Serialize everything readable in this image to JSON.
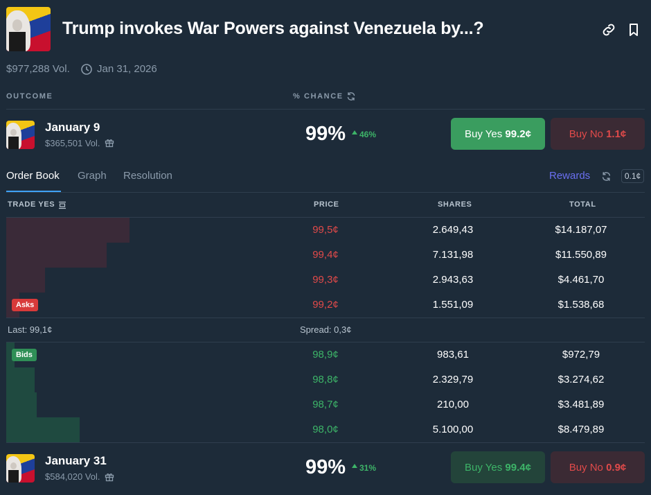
{
  "market": {
    "title": "Trump invokes War Powers against Venezuela by...?",
    "volume": "$977,288 Vol.",
    "end_date": "Jan 31, 2026"
  },
  "header_cols": {
    "outcome": "OUTCOME",
    "chance": "% CHANCE"
  },
  "outcomes": [
    {
      "name": "January 9",
      "volume": "$365,501 Vol.",
      "chance": "99%",
      "delta": "46%",
      "buy_yes_label": "Buy Yes",
      "buy_yes_price": "99.2¢",
      "buy_no_label": "Buy No",
      "buy_no_price": "1.1¢"
    },
    {
      "name": "January 31",
      "volume": "$584,020 Vol.",
      "chance": "99%",
      "delta": "31%",
      "buy_yes_label": "Buy Yes",
      "buy_yes_price": "99.4¢",
      "buy_no_label": "Buy No",
      "buy_no_price": "0.9¢"
    }
  ],
  "tabs": {
    "order_book": "Order Book",
    "graph": "Graph",
    "resolution": "Resolution"
  },
  "rewards": {
    "label": "Rewards",
    "tick": "0.1¢"
  },
  "order_book": {
    "trade_label": "TRADE YES",
    "columns": {
      "price": "PRICE",
      "shares": "SHARES",
      "total": "TOTAL"
    },
    "asks_label": "Asks",
    "bids_label": "Bids",
    "asks": [
      {
        "price": "99,5¢",
        "shares": "2.649,43",
        "total": "$14.187,07",
        "depth": 14187.07
      },
      {
        "price": "99,4¢",
        "shares": "7.131,98",
        "total": "$11.550,89",
        "depth": 11550.89
      },
      {
        "price": "99,3¢",
        "shares": "2.943,63",
        "total": "$4.461,70",
        "depth": 4461.7
      },
      {
        "price": "99,2¢",
        "shares": "1.551,09",
        "total": "$1.538,68",
        "depth": 1538.68
      }
    ],
    "last": "Last: 99,1¢",
    "spread": "Spread: 0,3¢",
    "bids": [
      {
        "price": "98,9¢",
        "shares": "983,61",
        "total": "$972,79",
        "depth": 972.79
      },
      {
        "price": "98,8¢",
        "shares": "2.329,79",
        "total": "$3.274,62",
        "depth": 3274.62
      },
      {
        "price": "98,7¢",
        "shares": "210,00",
        "total": "$3.481,89",
        "depth": 3481.89
      },
      {
        "price": "98,0¢",
        "shares": "5.100,00",
        "total": "$8.479,89",
        "depth": 8479.89
      }
    ]
  },
  "colors": {
    "background": "#1d2b39",
    "ask_red": "#e04a4a",
    "bid_green": "#3db468",
    "buy_yes_bg": "#3a9d5f",
    "buy_no_bg": "#3b2a34",
    "rewards": "#5b6cf0",
    "tab_active_underline": "#3fa2f6"
  },
  "icons": [
    "link-icon",
    "bookmark-icon",
    "clock-icon",
    "refresh-icon",
    "gift-icon",
    "orderbook-toggle-icon",
    "triangle-up-icon"
  ]
}
